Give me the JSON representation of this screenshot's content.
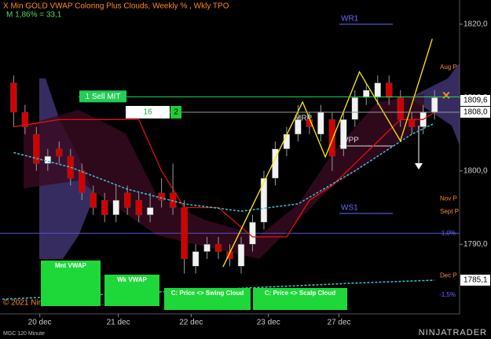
{
  "header": {
    "title": "X Min GOLD VWAP Coloring Plus Clouds, Weekly % , Wkly TPO",
    "subtitle": "M 1,86% = 33,1"
  },
  "chart_data": {
    "type": "candlestick",
    "up_color": "#f2f2f2",
    "down_color": "#d40000",
    "wick_color": "#9a9a9a",
    "open": [
      1812,
      1808,
      1805,
      1801,
      1803,
      1802,
      1800,
      1797,
      1796,
      1794,
      1797,
      1796,
      1794,
      1797,
      1797,
      1795,
      1787,
      1789,
      1790,
      1789,
      1787,
      1790,
      1793,
      1799,
      1803,
      1805,
      1807,
      1805,
      1807,
      1803,
      1807,
      1810,
      1810,
      1812,
      1810,
      1807,
      1806,
      1808
    ],
    "high": [
      1813,
      1809,
      1806,
      1803,
      1804,
      1803,
      1801,
      1798,
      1797,
      1798,
      1798,
      1797,
      1797,
      1799,
      1801,
      1796,
      1790,
      1791,
      1791,
      1790,
      1791,
      1794,
      1800,
      1804,
      1806,
      1809,
      1808,
      1809,
      1808,
      1808,
      1811,
      1812,
      1813,
      1813,
      1811,
      1808,
      1809,
      1811
    ],
    "low": [
      1806,
      1805,
      1800,
      1800,
      1801,
      1798,
      1796,
      1794,
      1793,
      1793,
      1794,
      1793,
      1793,
      1795,
      1794,
      1786,
      1786,
      1788,
      1788,
      1787,
      1786,
      1789,
      1792,
      1798,
      1802,
      1804,
      1805,
      1804,
      1800,
      1802,
      1806,
      1809,
      1809,
      1809,
      1806,
      1805,
      1805,
      1807
    ],
    "close": [
      1808,
      1806,
      1801,
      1802,
      1802,
      1799,
      1797,
      1795,
      1794,
      1796,
      1795,
      1794,
      1795,
      1796,
      1795,
      1788,
      1789,
      1790,
      1789,
      1788,
      1790,
      1793,
      1799,
      1803,
      1805,
      1807,
      1806,
      1808,
      1802,
      1807,
      1810,
      1811,
      1812,
      1810,
      1807,
      1806,
      1808,
      1810
    ],
    "xlim": [
      -1.2,
      39.2
    ],
    "xticks": [
      {
        "value": 2.3,
        "label": "20 dec"
      },
      {
        "value": 9.2,
        "label": "21 dec"
      },
      {
        "value": 15.6,
        "label": "22 dec"
      },
      {
        "value": 22.4,
        "label": "23 dec"
      },
      {
        "value": 28.6,
        "label": "27 dec"
      }
    ],
    "ylim": [
      1780.5,
      1823.3
    ],
    "yticks": [
      {
        "value": 1790,
        "label": "1790,0"
      },
      {
        "value": 1800,
        "label": "1800,0"
      },
      {
        "value": 1810,
        "label": "1810,0"
      },
      {
        "value": 1820,
        "label": "1820,0"
      }
    ],
    "lines": [
      {
        "color": "#e01010",
        "dash": false,
        "x": [
          0,
          4,
          8,
          11,
          13,
          15,
          18,
          21,
          24,
          26,
          28,
          30,
          32,
          34,
          36,
          37
        ],
        "values": [
          1806,
          1807,
          1807,
          1807,
          1800,
          1795,
          1795,
          1791,
          1791,
          1796,
          1798,
          1801,
          1804,
          1807,
          1807,
          1808
        ]
      },
      {
        "color": "#3ac5d6",
        "dash": true,
        "x": [
          0,
          5,
          10,
          15,
          20,
          25,
          30,
          35,
          37
        ],
        "values": [
          1802.5,
          1800.5,
          1797.5,
          1795.5,
          1794.5,
          1795.5,
          1800,
          1805,
          1806.5
        ]
      },
      {
        "color": "#3ac5d6",
        "dash": true,
        "x": [
          -1,
          10,
          20,
          30,
          37
        ],
        "values": [
          1782.5,
          1783.3,
          1784,
          1784.7,
          1785.1
        ]
      },
      {
        "color": "#ffee00",
        "dash": false,
        "x": [
          18.4,
          25.4,
          27.4,
          30.4,
          34,
          36.8
        ],
        "values": [
          1786.9,
          1809.4,
          1801.9,
          1813.5,
          1804.1,
          1818
        ]
      }
    ],
    "pivot_levels": [
      {
        "label": "WR1",
        "value": 1820
      },
      {
        "label": "MRP",
        "value": 1806.4
      },
      {
        "label": "WPP",
        "value": 1803.4
      },
      {
        "label": "WS1",
        "value": 1794.2
      }
    ],
    "session_levels": [
      {
        "label": "Aug P",
        "value": 1814.1
      },
      {
        "label": "Nov P",
        "value": 1796.2
      },
      {
        "label": "Sept P",
        "value": 1794.4
      },
      {
        "label": "Dec P",
        "value": 1785.7
      }
    ],
    "percent_levels": [
      {
        "label": "-1,0%",
        "value": 1791.5
      },
      {
        "label": "-1,5%",
        "value": 1783.1
      }
    ],
    "order": {
      "label": "1 Sell MIT",
      "value": 1810.1
    },
    "position": {
      "value": 1808,
      "quantity": 16,
      "count": 2
    },
    "price_tags": [
      {
        "value": 1809.6,
        "label": "1809,6"
      },
      {
        "value": 1808,
        "label": "1808,0"
      },
      {
        "value": 1785.1,
        "label": "1785,1"
      }
    ]
  },
  "buttons": [
    "Mnt VWAP",
    "Wk VWAP",
    "C: Price <> Swing Cloud",
    "C: Price <> Scalp Cloud"
  ],
  "footer": {
    "copyright": "© 2021 NinjaTrader, LLC",
    "instrument": "MGC 120 Minute",
    "brand": "NINJATRADER"
  }
}
